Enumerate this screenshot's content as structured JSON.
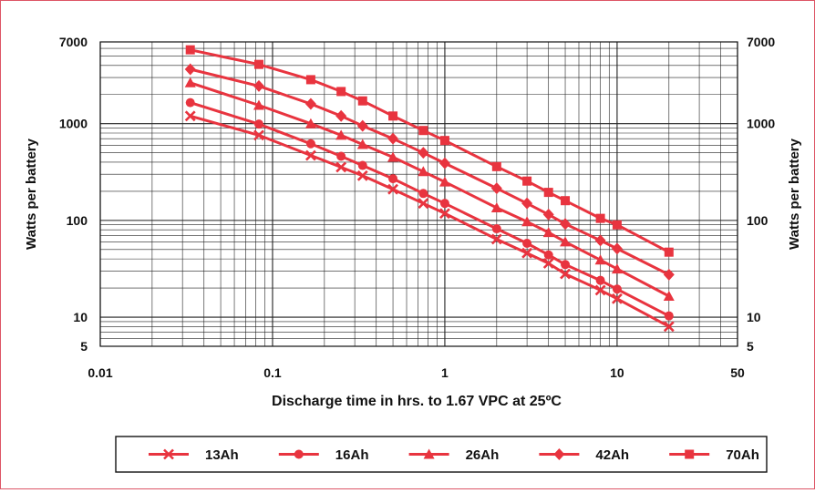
{
  "chart_data": {
    "type": "line",
    "title": "",
    "xlabel": "Discharge time in hrs. to 1.67 VPC at 25ºC",
    "ylabel": "Watts per battery",
    "x_scale": "log",
    "y_scale": "log",
    "xlim": [
      0.01,
      50
    ],
    "ylim": [
      5,
      7000
    ],
    "x_tick_labels": [
      "0.01",
      "0.1",
      "1",
      "10",
      "50"
    ],
    "x_tick_values": [
      0.01,
      0.1,
      1,
      10,
      50
    ],
    "y_tick_labels": [
      "5",
      "10",
      "100",
      "1000",
      "7000"
    ],
    "y_tick_values": [
      5,
      10,
      100,
      1000,
      7000
    ],
    "grid": true,
    "legend_position": "bottom",
    "line_color": "#e8343f",
    "series": [
      {
        "name": "13Ah",
        "marker": "x-mark",
        "x": [
          0.0333,
          0.0833,
          0.1667,
          0.25,
          0.3333,
          0.5,
          0.75,
          1,
          2,
          3,
          4,
          5,
          8,
          10,
          20
        ],
        "y": [
          1200,
          760,
          470,
          355,
          290,
          210,
          150,
          118,
          64,
          46,
          36,
          28,
          19,
          15.5,
          8
        ]
      },
      {
        "name": "16Ah",
        "marker": "circle",
        "x": [
          0.0333,
          0.0833,
          0.1667,
          0.25,
          0.3333,
          0.5,
          0.75,
          1,
          2,
          3,
          4,
          5,
          8,
          10,
          20
        ],
        "y": [
          1650,
          990,
          620,
          460,
          370,
          270,
          190,
          150,
          82,
          58,
          44,
          35,
          24,
          19.5,
          10.3
        ]
      },
      {
        "name": "26Ah",
        "marker": "triangle",
        "x": [
          0.0333,
          0.0833,
          0.1667,
          0.25,
          0.3333,
          0.5,
          0.75,
          1,
          2,
          3,
          4,
          5,
          8,
          10,
          20
        ],
        "y": [
          2650,
          1550,
          1000,
          760,
          610,
          450,
          320,
          250,
          135,
          97,
          75,
          60,
          39,
          31.5,
          16.5
        ]
      },
      {
        "name": "42Ah",
        "marker": "diamond",
        "x": [
          0.0333,
          0.0833,
          0.1667,
          0.25,
          0.3333,
          0.5,
          0.75,
          1,
          2,
          3,
          4,
          5,
          8,
          10,
          20
        ],
        "y": [
          3650,
          2450,
          1600,
          1200,
          950,
          700,
          500,
          390,
          215,
          150,
          115,
          92,
          62,
          51,
          27.5
        ]
      },
      {
        "name": "70Ah",
        "marker": "square",
        "x": [
          0.0333,
          0.0833,
          0.1667,
          0.25,
          0.3333,
          0.5,
          0.75,
          1,
          2,
          3,
          4,
          5,
          8,
          10,
          20
        ],
        "y": [
          5800,
          4100,
          2850,
          2150,
          1720,
          1200,
          850,
          670,
          360,
          255,
          195,
          160,
          105,
          90,
          47
        ]
      }
    ]
  }
}
